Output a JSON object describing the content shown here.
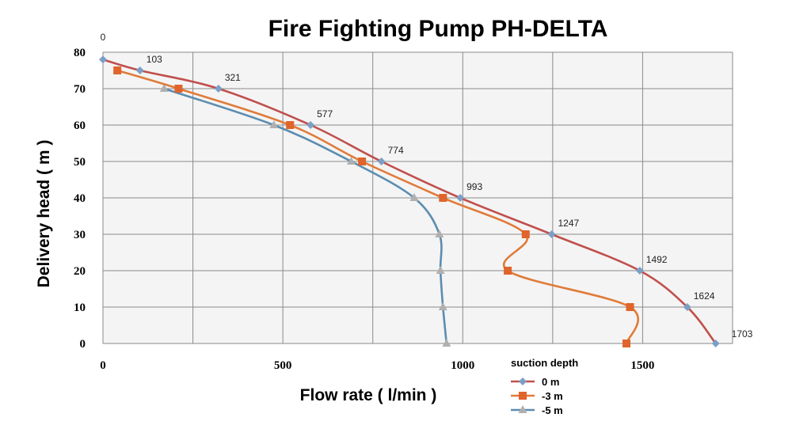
{
  "chart_data": {
    "type": "line",
    "title": "Fire Fighting Pump PH-DELTA",
    "xlabel": "Flow rate ( l/min )",
    "ylabel": "Delivery head ( m )",
    "xlim": [
      0,
      1750
    ],
    "ylim": [
      0,
      80
    ],
    "x_ticks": [
      0,
      500,
      1000,
      1500
    ],
    "y_ticks": [
      0,
      10,
      20,
      30,
      40,
      50,
      60,
      70,
      80
    ],
    "grid": true,
    "legend_title": "suction depth",
    "legend_position": "bottom-right",
    "series": [
      {
        "name": "0 m",
        "color": "#c0504d",
        "marker_color": "#7ba0c7",
        "marker": "diamond",
        "points": [
          [
            0,
            78
          ],
          [
            103,
            75
          ],
          [
            321,
            70
          ],
          [
            577,
            60
          ],
          [
            774,
            50
          ],
          [
            993,
            40
          ],
          [
            1247,
            30
          ],
          [
            1492,
            20
          ],
          [
            1624,
            10
          ],
          [
            1703,
            0
          ]
        ]
      },
      {
        "name": "-3 m",
        "color": "#e07b39",
        "marker_color": "#e0642b",
        "marker": "square",
        "points": [
          [
            40,
            75
          ],
          [
            210,
            70
          ],
          [
            520,
            60
          ],
          [
            720,
            50
          ],
          [
            945,
            40
          ],
          [
            1175,
            30
          ],
          [
            1125,
            20
          ],
          [
            1465,
            10
          ],
          [
            1455,
            0
          ]
        ]
      },
      {
        "name": "-5 m",
        "color": "#5b8db0",
        "marker_color": "#b0b0b0",
        "marker": "triangle",
        "points": [
          [
            170,
            70
          ],
          [
            475,
            60
          ],
          [
            690,
            50
          ],
          [
            865,
            40
          ],
          [
            935,
            30
          ],
          [
            938,
            20
          ],
          [
            945,
            10
          ],
          [
            955,
            0
          ]
        ]
      }
    ],
    "data_labels": [
      {
        "x": 0,
        "y": 78,
        "text": "0"
      },
      {
        "x": 103,
        "y": 75,
        "text": "103"
      },
      {
        "x": 321,
        "y": 70,
        "text": "321"
      },
      {
        "x": 577,
        "y": 60,
        "text": "577"
      },
      {
        "x": 774,
        "y": 50,
        "text": "774"
      },
      {
        "x": 993,
        "y": 40,
        "text": "993"
      },
      {
        "x": 1247,
        "y": 30,
        "text": "1247"
      },
      {
        "x": 1492,
        "y": 20,
        "text": "1492"
      },
      {
        "x": 1624,
        "y": 10,
        "text": "1624"
      },
      {
        "x": 1703,
        "y": 0,
        "text": "1703"
      }
    ]
  }
}
